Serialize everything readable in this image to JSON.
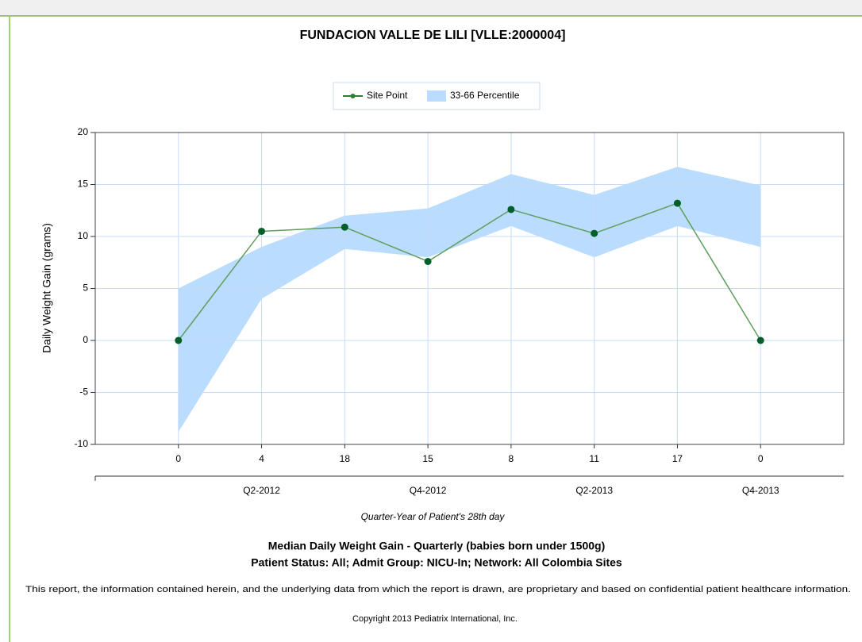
{
  "chart_data": {
    "type": "line",
    "title": "FUNDACION VALLE DE LILI [VLLE:2000004]",
    "y_label": "Daily Weight Gain (grams)",
    "x_label": "Quarter-Year of Patient's 28th day",
    "subtitle": [
      "Median Daily Weight Gain - Quarterly (babies born under 1500g)",
      "Patient Status: All; Admit Group: NICU-In; Network: All Colombia Sites"
    ],
    "footnote": "This report, the information contained herein, and the underlying data from which the report is drawn, are proprietary and based on confidential patient healthcare information.",
    "copyright": "Copyright 2013 Pediatrix International, Inc.",
    "categories": [
      "0",
      "4",
      "18",
      "15",
      "8",
      "11",
      "17",
      "0"
    ],
    "quarters": [
      null,
      "Q2-2012",
      null,
      "Q4-2012",
      null,
      "Q2-2013",
      null,
      "Q4-2013"
    ],
    "series": [
      {
        "name": "Site Point",
        "color": "#2e7d32",
        "values": [
          0,
          10.5,
          10.9,
          7.6,
          12.6,
          10.3,
          13.2,
          0
        ]
      }
    ],
    "band": {
      "name": "33-66 Percentile",
      "color": "#b9dcff",
      "low": [
        -8.8,
        4,
        8.8,
        8,
        11,
        8,
        11,
        9
      ],
      "high": [
        5,
        9,
        12,
        12.7,
        16,
        14,
        16.7,
        14.9
      ]
    },
    "ylim": [
      -10,
      20
    ],
    "yticks": [
      -10,
      -5,
      0,
      5,
      10,
      15,
      20
    ],
    "grid": true
  }
}
